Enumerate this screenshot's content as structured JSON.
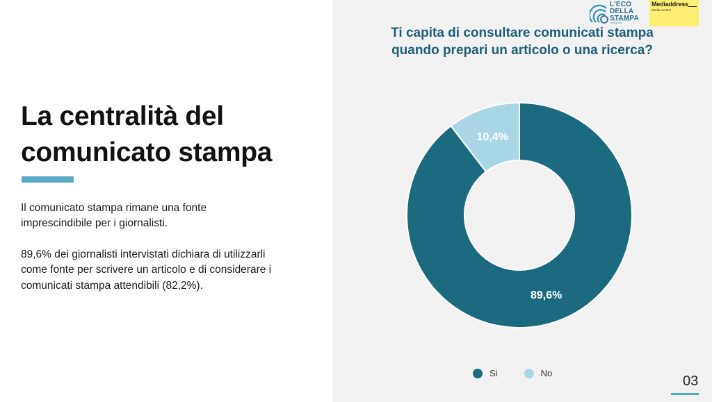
{
  "slide": {
    "title_lines": [
      "La centralità del",
      "comunicato stampa"
    ],
    "paragraph1_lines": [
      "Il comunicato stampa rimane una fonte",
      "imprescindibile per i giornalisti."
    ],
    "paragraph2_lines": [
      "89,6% dei giornalisti intervistati dichiara di utilizzarli",
      "come fonte per scrivere un articolo e di considerare i",
      "comunicati stampa attendibili (82,2%)."
    ],
    "page_number": "03"
  },
  "logos": {
    "eco_lines": [
      "L'ECO",
      "DELLA",
      "STAMPA"
    ],
    "eco_tagline": "media monitoring & intelligence",
    "md_name": "Mediaddress",
    "md_sub": "Media contact"
  },
  "colors": {
    "si": "#1b6a80",
    "no": "#a9d6e4",
    "title": "#1e5e78",
    "accent": "#5aabc7"
  },
  "chart_data": {
    "type": "pie",
    "title_lines": [
      "Ti capita di consultare comunicati stampa",
      "quando prepari un articolo o una ricerca?"
    ],
    "categories": [
      "Si",
      "No"
    ],
    "values": [
      89.6,
      10.4
    ],
    "value_labels": [
      "89,6%",
      "10,4%"
    ],
    "donut": true,
    "legend_position": "bottom"
  }
}
